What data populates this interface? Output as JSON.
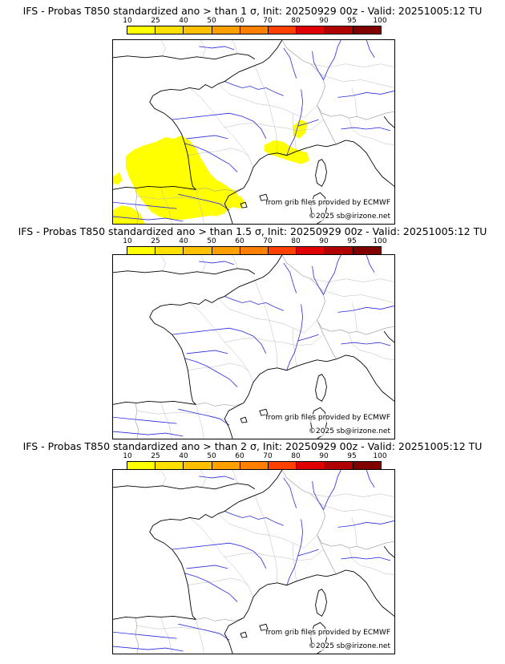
{
  "legend": {
    "ticks": [
      "10",
      "25",
      "40",
      "50",
      "60",
      "70",
      "80",
      "90",
      "95",
      "100"
    ],
    "colors": [
      "#ffff00",
      "#ffe000",
      "#ffc000",
      "#ffa000",
      "#ff8000",
      "#ff4000",
      "#e00000",
      "#b00000",
      "#800000"
    ]
  },
  "style": {
    "exceedance_color": "#ffff00",
    "coast_color": "#000000",
    "river_color": "#2a2ae0",
    "border_color": "#a0a0a0"
  },
  "panels": [
    {
      "title": "IFS - Probas T850  standardized ano > than 1 σ, Init: 20250929 00z - Valid: 20251005:12 TU",
      "threshold": "1 σ",
      "credit_source": "from grib files provided by ECMWF",
      "credit_copyright": "©2025 sb@irizone.net",
      "has_exceedance_area": true
    },
    {
      "title": "IFS - Probas T850  standardized ano > than 1.5 σ, Init: 20250929 00z - Valid: 20251005:12 TU",
      "threshold": "1.5 σ",
      "credit_source": "from grib files provided by ECMWF",
      "credit_copyright": "©2025 sb@irizone.net",
      "has_exceedance_area": false
    },
    {
      "title": "IFS - Probas T850  standardized ano > than 2 σ, Init: 20250929 00z - Valid: 20251005:12 TU",
      "threshold": "2 σ",
      "credit_source": "from grib files provided by ECMWF",
      "credit_copyright": "©2025 sb@irizone.net",
      "has_exceedance_area": false
    }
  ]
}
